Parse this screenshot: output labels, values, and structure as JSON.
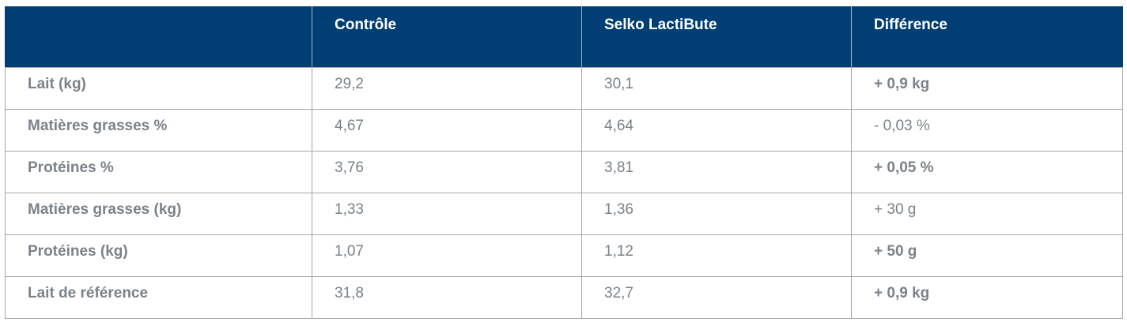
{
  "table": {
    "headers": [
      "",
      "Contrôle",
      "Selko LactiBute",
      "Différence"
    ],
    "rows": [
      {
        "label": "Lait (kg)",
        "control": "29,2",
        "selko": "30,1",
        "diff": "+ 0,9 kg",
        "diff_bold": true
      },
      {
        "label": "Matières grasses %",
        "control": "4,67",
        "selko": "4,64",
        "diff": "- 0,03 %",
        "diff_bold": false
      },
      {
        "label": "Protéines %",
        "control": "3,76",
        "selko": "3,81",
        "diff": "+ 0,05 %",
        "diff_bold": true
      },
      {
        "label": "Matières grasses (kg)",
        "control": "1,33",
        "selko": "1,36",
        "diff": "+ 30 g",
        "diff_bold": false
      },
      {
        "label": "Protéines (kg)",
        "control": "1,07",
        "selko": "1,12",
        "diff": "+ 50 g",
        "diff_bold": true
      },
      {
        "label": "Lait de référence",
        "control": "31,8",
        "selko": "32,7",
        "diff": "+ 0,9 kg",
        "diff_bold": true
      }
    ]
  },
  "colors": {
    "header_bg": "#013e74",
    "header_text": "#ffffff",
    "body_text": "#7b8288",
    "grid": "#a6a6a6"
  }
}
